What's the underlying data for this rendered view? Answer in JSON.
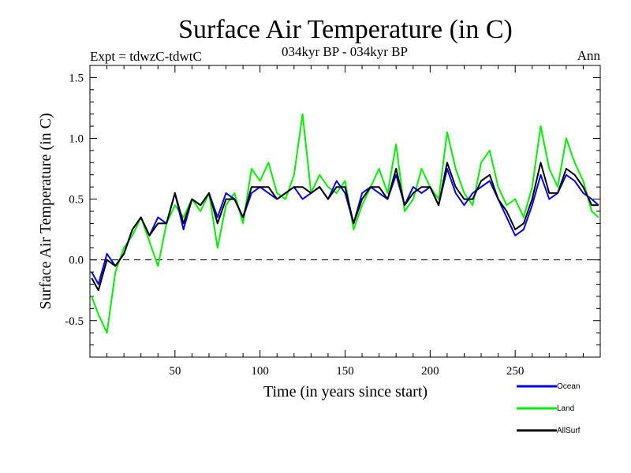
{
  "chart_data": {
    "type": "line",
    "title": "Surface Air Temperature (in C)",
    "subtitle_left": "Expt = tdwzC-tdwtC",
    "subtitle_center": "034kyr BP - 034kyr BP",
    "subtitle_right": "Ann",
    "xlabel": "Time (in years since start)",
    "ylabel": "Surface Air Temperature (in C)",
    "xlim": [
      0,
      300
    ],
    "ylim": [
      -0.8,
      1.6
    ],
    "xticks": [
      50,
      100,
      150,
      200,
      250
    ],
    "yticks": [
      -0.5,
      0.0,
      0.5,
      1.0,
      1.5
    ],
    "xtick_labels": [
      "50",
      "100",
      "150",
      "200",
      "250"
    ],
    "ytick_labels": [
      "-0.5",
      "0.0",
      "0.5",
      "1.0",
      "1.5"
    ],
    "reference_line": 0.0,
    "x": [
      1,
      5,
      10,
      15,
      20,
      25,
      30,
      35,
      40,
      45,
      50,
      55,
      60,
      65,
      70,
      75,
      80,
      85,
      90,
      95,
      100,
      105,
      110,
      115,
      120,
      125,
      130,
      135,
      140,
      145,
      150,
      155,
      160,
      165,
      170,
      175,
      180,
      185,
      190,
      195,
      200,
      205,
      210,
      215,
      220,
      225,
      230,
      235,
      240,
      245,
      250,
      255,
      260,
      265,
      270,
      275,
      280,
      285,
      290,
      295,
      299
    ],
    "series": [
      {
        "name": "Land",
        "color": "#00ee00",
        "values": [
          -0.3,
          -0.45,
          -0.6,
          -0.1,
          0.1,
          0.2,
          0.35,
          0.15,
          -0.05,
          0.3,
          0.45,
          0.35,
          0.5,
          0.4,
          0.55,
          0.1,
          0.45,
          0.55,
          0.3,
          0.75,
          0.65,
          0.8,
          0.55,
          0.5,
          0.7,
          1.2,
          0.55,
          0.7,
          0.6,
          0.55,
          0.65,
          0.25,
          0.45,
          0.6,
          0.75,
          0.55,
          0.95,
          0.4,
          0.5,
          0.75,
          0.6,
          0.5,
          1.05,
          0.75,
          0.55,
          0.45,
          0.8,
          0.9,
          0.6,
          0.45,
          0.5,
          0.35,
          0.6,
          1.1,
          0.75,
          0.6,
          1.0,
          0.8,
          0.65,
          0.4,
          0.35
        ]
      },
      {
        "name": "Ocean",
        "color": "#0000ee",
        "values": [
          -0.1,
          -0.2,
          0.05,
          -0.05,
          0.05,
          0.25,
          0.35,
          0.2,
          0.35,
          0.3,
          0.55,
          0.25,
          0.5,
          0.45,
          0.55,
          0.35,
          0.55,
          0.5,
          0.35,
          0.55,
          0.6,
          0.55,
          0.5,
          0.55,
          0.6,
          0.5,
          0.55,
          0.6,
          0.5,
          0.65,
          0.55,
          0.3,
          0.55,
          0.6,
          0.55,
          0.5,
          0.7,
          0.45,
          0.6,
          0.55,
          0.6,
          0.45,
          0.75,
          0.55,
          0.45,
          0.55,
          0.6,
          0.65,
          0.5,
          0.35,
          0.2,
          0.25,
          0.45,
          0.7,
          0.5,
          0.55,
          0.7,
          0.65,
          0.55,
          0.5,
          0.45
        ]
      },
      {
        "name": "AllSurf",
        "color": "#000000",
        "values": [
          -0.15,
          -0.25,
          0.0,
          -0.05,
          0.05,
          0.25,
          0.35,
          0.2,
          0.3,
          0.3,
          0.55,
          0.3,
          0.5,
          0.45,
          0.55,
          0.3,
          0.5,
          0.5,
          0.35,
          0.6,
          0.6,
          0.6,
          0.5,
          0.55,
          0.6,
          0.6,
          0.55,
          0.6,
          0.5,
          0.6,
          0.6,
          0.3,
          0.5,
          0.6,
          0.6,
          0.5,
          0.75,
          0.45,
          0.55,
          0.6,
          0.6,
          0.45,
          0.8,
          0.6,
          0.5,
          0.5,
          0.65,
          0.7,
          0.5,
          0.4,
          0.25,
          0.3,
          0.5,
          0.8,
          0.55,
          0.55,
          0.75,
          0.7,
          0.6,
          0.45,
          0.45
        ]
      }
    ],
    "legend": {
      "placement": "bottom-right",
      "entries": [
        {
          "label": "Ocean",
          "color": "#0000ee"
        },
        {
          "label": "Land",
          "color": "#00ee00"
        },
        {
          "label": "AllSurf",
          "color": "#000000"
        }
      ]
    }
  }
}
